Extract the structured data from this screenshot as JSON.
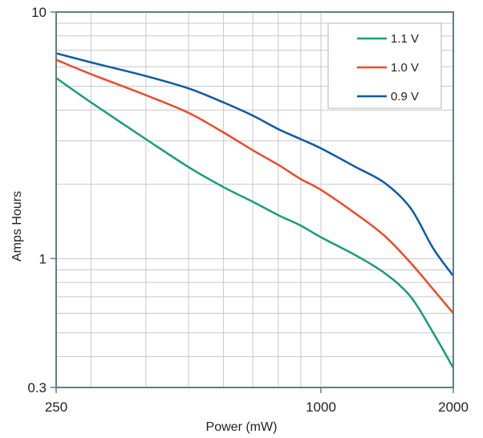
{
  "chart_data": {
    "type": "line",
    "title": "",
    "xlabel": "Power (mW)",
    "ylabel": "Amps Hours",
    "x_scale": "log",
    "y_scale": "log",
    "xlim": [
      250,
      2000
    ],
    "ylim": [
      0.3,
      10
    ],
    "x_tick_labels": [
      "250",
      "1000",
      "2000"
    ],
    "x_tick_values": [
      250,
      1000,
      2000
    ],
    "y_tick_labels": [
      "10",
      "1",
      "0.3"
    ],
    "y_tick_values": [
      10,
      1,
      0.3
    ],
    "grid": true,
    "legend_position": "top-right",
    "series": [
      {
        "name": "1.1 V",
        "color": "#1a9e6e",
        "x": [
          250,
          300,
          400,
          500,
          600,
          700,
          800,
          900,
          1000,
          1200,
          1400,
          1600,
          1800,
          2000
        ],
        "y": [
          5.4,
          4.3,
          3.05,
          2.35,
          1.95,
          1.7,
          1.5,
          1.36,
          1.22,
          1.03,
          0.87,
          0.7,
          0.5,
          0.36
        ]
      },
      {
        "name": "1.0 V",
        "color": "#e84c2b",
        "x": [
          250,
          300,
          400,
          500,
          600,
          700,
          800,
          900,
          1000,
          1200,
          1400,
          1600,
          1800,
          2000
        ],
        "y": [
          6.4,
          5.6,
          4.6,
          3.9,
          3.25,
          2.75,
          2.4,
          2.1,
          1.9,
          1.52,
          1.23,
          0.96,
          0.75,
          0.6
        ]
      },
      {
        "name": "0.9 V",
        "color": "#0d5aa7",
        "x": [
          250,
          300,
          400,
          500,
          600,
          700,
          800,
          900,
          1000,
          1200,
          1400,
          1600,
          1800,
          2000
        ],
        "y": [
          6.8,
          6.25,
          5.5,
          4.9,
          4.3,
          3.8,
          3.35,
          3.05,
          2.8,
          2.35,
          2.02,
          1.6,
          1.1,
          0.85
        ]
      }
    ]
  }
}
